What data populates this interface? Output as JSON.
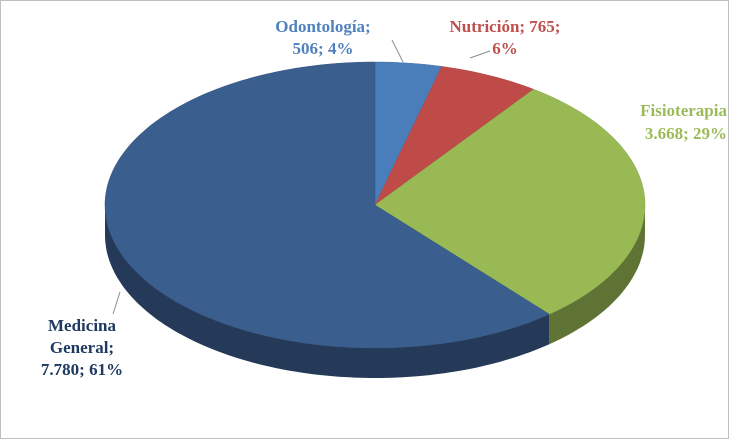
{
  "chart_data": {
    "type": "pie3d",
    "values": [
      506,
      765,
      3668,
      7780
    ],
    "value_labels": [
      [
        "Odontología;",
        "506; 4%"
      ],
      [
        "Nutrición; 765;",
        "6%"
      ],
      [
        "Fisioterapia",
        "3.668; 29%"
      ],
      [
        "Medicina",
        "General;",
        "7.780; 61%"
      ]
    ],
    "colors": [
      "#4a7ebb",
      "#be4b48",
      "#98b954",
      "#3a5e8e"
    ],
    "label_colors": [
      "#4f81bd",
      "#c0504d",
      "#9bbb59",
      "#1f3a60"
    ]
  }
}
